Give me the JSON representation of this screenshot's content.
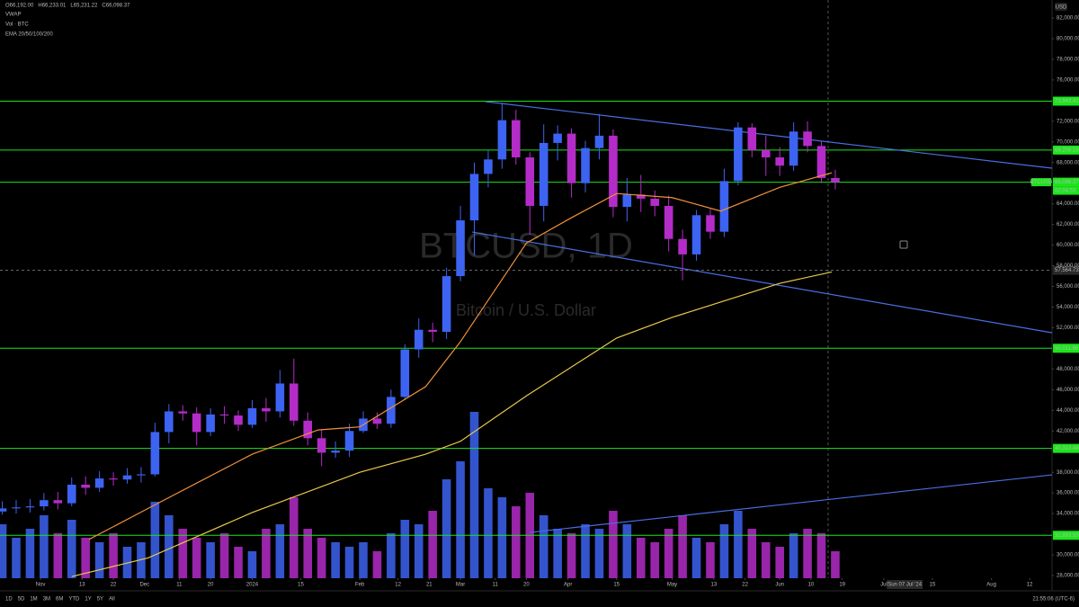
{
  "chart_data": {
    "type": "candlestick",
    "symbol_watermark": "BTCUSD, 1D",
    "description_watermark": "Bitcoin / U.S. Dollar",
    "currency": "USD",
    "legend": [
      "O66,192.00",
      "H66,233.01",
      "L65,231.22",
      "C66,098.37"
    ],
    "indicators": [
      "VWAP",
      "Vol · BTC",
      "EMA 20/50/100/200"
    ],
    "toolbar": [
      "1D",
      "5D",
      "1M",
      "3M",
      "6M",
      "YTD",
      "1Y",
      "5Y",
      "All"
    ],
    "clock": "21:55:06 (UTC-6)",
    "up_color": "#3d63f2",
    "down_color": "#b42cc8",
    "xlim": [
      -11.66,
      291.45
    ],
    "ylim": [
      27739,
      83742
    ],
    "vlim": [
      0,
      400
    ],
    "xticks": [
      {
        "value": 0,
        "label": "Nov"
      },
      {
        "value": 12,
        "label": "13"
      },
      {
        "value": 21,
        "label": "22"
      },
      {
        "value": 30,
        "label": "Dec"
      },
      {
        "value": 40,
        "label": "11"
      },
      {
        "value": 49,
        "label": "20"
      },
      {
        "value": 61,
        "label": "2024"
      },
      {
        "value": 75,
        "label": "15"
      },
      {
        "value": 92,
        "label": "Feb"
      },
      {
        "value": 103,
        "label": "12"
      },
      {
        "value": 112,
        "label": "21"
      },
      {
        "value": 121,
        "label": "Mar"
      },
      {
        "value": 131,
        "label": "11"
      },
      {
        "value": 140,
        "label": "20"
      },
      {
        "value": 152,
        "label": "Apr"
      },
      {
        "value": 166,
        "label": "15"
      },
      {
        "value": 182,
        "label": "May"
      },
      {
        "value": 194,
        "label": "13"
      },
      {
        "value": 203,
        "label": "22"
      },
      {
        "value": 213,
        "label": "Jun"
      },
      {
        "value": 222,
        "label": "10"
      },
      {
        "value": 231,
        "label": "19"
      },
      {
        "value": 243,
        "label": "Jul"
      },
      {
        "value": 257,
        "label": "15"
      },
      {
        "value": 274,
        "label": "Aug"
      },
      {
        "value": 285,
        "label": "12"
      }
    ],
    "yticks": [
      {
        "value": 82000,
        "label": "82,000.00"
      },
      {
        "value": 80000,
        "label": "80,000.00"
      },
      {
        "value": 78000,
        "label": "78,000.00"
      },
      {
        "value": 76000,
        "label": "76,000.00"
      },
      {
        "value": 74000,
        "label": "74,000.00"
      },
      {
        "value": 72000,
        "label": "72,000.00"
      },
      {
        "value": 70000,
        "label": "70,000.00"
      },
      {
        "value": 68000,
        "label": "68,000.00"
      },
      {
        "value": 64000,
        "label": "64,000.00"
      },
      {
        "value": 62000,
        "label": "62,000.00"
      },
      {
        "value": 60000,
        "label": "60,000.00"
      },
      {
        "value": 58000,
        "label": "58,000.00"
      },
      {
        "value": 56000,
        "label": "56,000.00"
      },
      {
        "value": 54000,
        "label": "54,000.00"
      },
      {
        "value": 52000,
        "label": "52,000.00"
      },
      {
        "value": 48000,
        "label": "48,000.00"
      },
      {
        "value": 46000,
        "label": "46,000.00"
      },
      {
        "value": 44000,
        "label": "44,000.00"
      },
      {
        "value": 42000,
        "label": "42,000.00"
      },
      {
        "value": 38000,
        "label": "38,000.00"
      },
      {
        "value": 36000,
        "label": "36,000.00"
      },
      {
        "value": 34000,
        "label": "34,000.00"
      },
      {
        "value": 30000,
        "label": "30,000.00"
      },
      {
        "value": 28000,
        "label": "28,000.00"
      }
    ],
    "x": [
      -11,
      -7,
      -3,
      1,
      5,
      9,
      13,
      17,
      21,
      25,
      29,
      33,
      37,
      41,
      45,
      49,
      53,
      57,
      61,
      65,
      69,
      73,
      77,
      81,
      85,
      89,
      93,
      97,
      101,
      105,
      109,
      113,
      117,
      121,
      125,
      129,
      133,
      137,
      141,
      145,
      149,
      153,
      157,
      161,
      165,
      169,
      173,
      177,
      181,
      185,
      189,
      193,
      197,
      201,
      205,
      209,
      213,
      217,
      221,
      225,
      229
    ],
    "open": [
      34200,
      34500,
      34600,
      34700,
      35300,
      35000,
      36800,
      36500,
      37400,
      37300,
      37700,
      37800,
      41900,
      43900,
      43700,
      41900,
      43600,
      43500,
      42600,
      44200,
      43900,
      46600,
      43000,
      41300,
      39900,
      40100,
      42000,
      43200,
      42700,
      45300,
      49900,
      51800,
      51600,
      57000,
      62400,
      66900,
      68300,
      72100,
      68500,
      63800,
      69900,
      70800,
      66000,
      69400,
      70600,
      63700,
      64900,
      64500,
      63800,
      60600,
      59100,
      62900,
      61300,
      66200,
      71400,
      69200,
      68500,
      67700,
      71000,
      69600,
      66500
    ],
    "high": [
      35200,
      35300,
      35400,
      36000,
      36100,
      37500,
      37600,
      38100,
      38000,
      38400,
      38500,
      42800,
      44600,
      44500,
      44300,
      44200,
      44400,
      44000,
      45000,
      45200,
      47900,
      49000,
      43800,
      42100,
      41000,
      42700,
      43900,
      43800,
      46000,
      50400,
      52900,
      52500,
      57800,
      63800,
      68000,
      69200,
      73800,
      73100,
      69000,
      71700,
      71600,
      71300,
      70100,
      72700,
      71200,
      66500,
      66800,
      65300,
      64800,
      61500,
      63400,
      63500,
      67400,
      71900,
      71800,
      70600,
      69500,
      71900,
      72000,
      70100,
      67300
    ],
    "low": [
      33900,
      34000,
      34100,
      34300,
      34400,
      34700,
      35800,
      36100,
      36700,
      36900,
      37000,
      37600,
      40800,
      43000,
      40600,
      41500,
      42700,
      42000,
      42300,
      42900,
      43300,
      42500,
      40600,
      38600,
      39400,
      39500,
      41800,
      42200,
      42300,
      45000,
      49100,
      50600,
      50900,
      56500,
      59000,
      65600,
      67400,
      67800,
      61000,
      62300,
      68200,
      64600,
      65100,
      68300,
      62700,
      62300,
      63200,
      62800,
      59400,
      56600,
      58500,
      60600,
      60800,
      65800,
      68500,
      66700,
      66700,
      67200,
      69000,
      66000,
      65400
    ],
    "close": [
      34500,
      34600,
      34700,
      35300,
      35000,
      36800,
      36500,
      37400,
      37300,
      37700,
      37800,
      41900,
      43900,
      43700,
      41900,
      43600,
      43500,
      42600,
      44200,
      43900,
      46600,
      43000,
      41300,
      39900,
      40100,
      42000,
      43200,
      42700,
      45300,
      49900,
      51800,
      51600,
      57000,
      62400,
      66900,
      68300,
      72100,
      68500,
      63800,
      69900,
      70800,
      66000,
      69400,
      70600,
      63700,
      64900,
      64500,
      63800,
      60600,
      59100,
      62900,
      61300,
      66200,
      71400,
      69200,
      68500,
      67700,
      71000,
      69600,
      66500,
      66100
    ],
    "volume": [
      60,
      45,
      55,
      70,
      50,
      65,
      45,
      40,
      50,
      35,
      40,
      85,
      70,
      55,
      45,
      40,
      50,
      35,
      30,
      55,
      60,
      90,
      55,
      45,
      40,
      35,
      40,
      30,
      50,
      65,
      60,
      75,
      110,
      130,
      185,
      100,
      90,
      80,
      95,
      70,
      55,
      50,
      60,
      55,
      75,
      60,
      45,
      40,
      55,
      70,
      45,
      40,
      60,
      75,
      55,
      40,
      35,
      50,
      55,
      50,
      30
    ],
    "ema": [
      {
        "color": "#f0913a",
        "x": [
          14,
          31,
          61,
          80,
          92,
          111,
          121,
          140,
          153,
          166,
          182,
          196,
          213,
          228
        ],
        "values": [
          31500,
          34500,
          39750,
          42100,
          42400,
          46300,
          50650,
          60200,
          62660,
          65000,
          64600,
          63300,
          65600,
          67000
        ]
      },
      {
        "color": "#e8c84a",
        "x": [
          9,
          31,
          61,
          92,
          111,
          121,
          140,
          166,
          182,
          213,
          228
        ],
        "values": [
          27900,
          29700,
          34100,
          38000,
          39750,
          41000,
          45400,
          51000,
          53000,
          56300,
          57400
        ]
      }
    ],
    "trendlines": [
      {
        "color": "#4a6ee0",
        "x": [
          128.2,
          291.45
        ],
        "values": [
          73900,
          67453
        ]
      },
      {
        "color": "#4a6ee0",
        "x": [
          124.4,
          291.45
        ],
        "values": [
          61268,
          51514
        ]
      },
      {
        "color": "#4a6ee0",
        "x": [
          141,
          291.45
        ],
        "values": [
          32174,
          37749
        ]
      }
    ],
    "level_color": "#19e619",
    "levels": [
      73943.41,
      69208.18,
      66098.37,
      50011.86,
      40313.48,
      31893.55
    ],
    "level_labels": [
      "73,943.41",
      "69,208.18",
      "66,098.37",
      "50,011.86",
      "40,313.48",
      "31,893.55"
    ],
    "price_tag": "BTCUSD",
    "countdown": "02:04:53",
    "crosshair": {
      "x": 249,
      "date": "Sun 07 Jul '24",
      "price": {
        "value": 57564.73,
        "label": "57,564.73"
      }
    }
  }
}
